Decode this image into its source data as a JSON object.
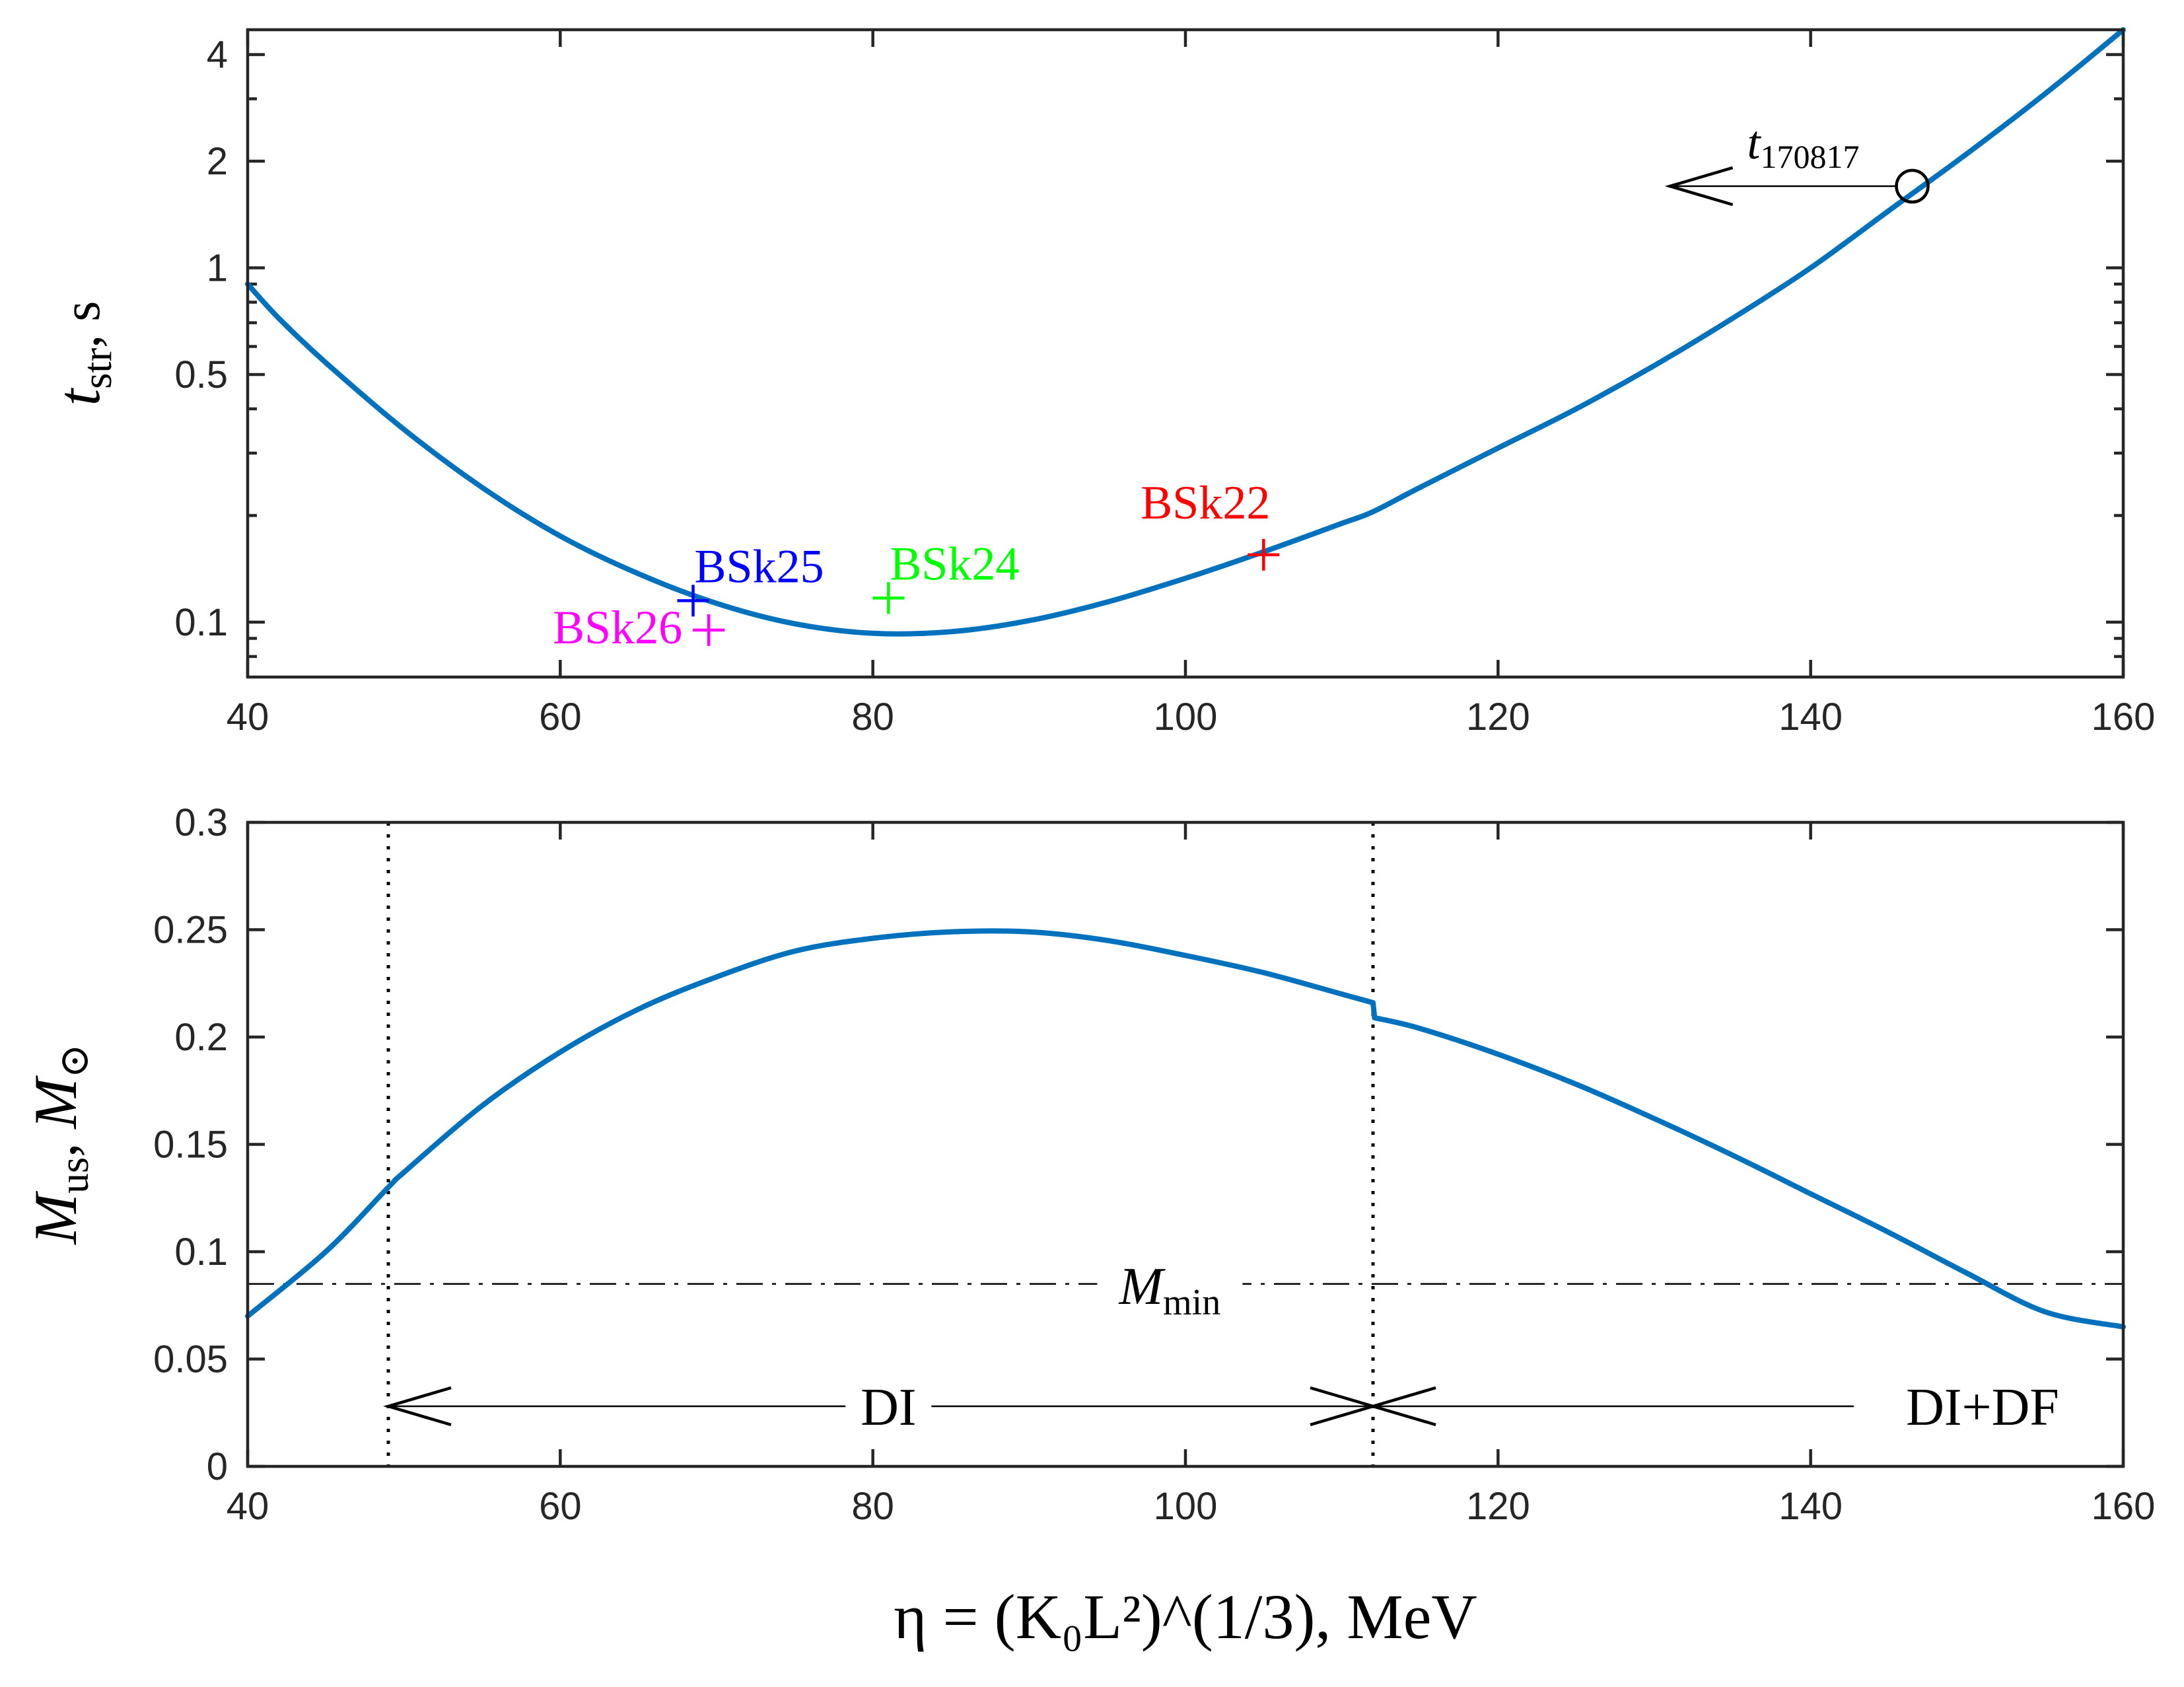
{
  "chart_data": [
    {
      "type": "line",
      "panel": "top",
      "x_scale": "linear",
      "y_scale": "log",
      "xlim": [
        40,
        160
      ],
      "ylim": [
        0.07,
        4.7
      ],
      "x_ticks": [
        40,
        60,
        80,
        100,
        120,
        140,
        160
      ],
      "y_ticks": [
        0.1,
        0.5,
        1,
        2,
        4
      ],
      "y_tick_labels": [
        "0.1",
        "0.5",
        "1",
        "2",
        "4"
      ],
      "ylabel_main": "t",
      "ylabel_sub": "str",
      "ylabel_unit": ", s",
      "series": [
        {
          "name": "t_str",
          "color": "#0072BD",
          "x": [
            40,
            42,
            45,
            50,
            55,
            60,
            65,
            70,
            75,
            80,
            85,
            90,
            95,
            100,
            105,
            110,
            112,
            115,
            120,
            125,
            130,
            135,
            140,
            145,
            150,
            155,
            160
          ],
          "y": [
            0.9,
            0.72,
            0.54,
            0.35,
            0.24,
            0.175,
            0.137,
            0.113,
            0.099,
            0.093,
            0.094,
            0.101,
            0.114,
            0.133,
            0.158,
            0.19,
            0.205,
            0.24,
            0.31,
            0.4,
            0.53,
            0.72,
            1.0,
            1.45,
            2.1,
            3.1,
            4.7
          ]
        }
      ],
      "markers": [
        {
          "label": "BSk25",
          "x": 68.5,
          "y": 0.115,
          "color": "#0000FF"
        },
        {
          "label": "BSk24",
          "x": 81.0,
          "y": 0.117,
          "color": "#00FF00"
        },
        {
          "label": "BSk22",
          "x": 105.0,
          "y": 0.155,
          "color": "#FF0000"
        },
        {
          "label": "BSk26",
          "x": 69.5,
          "y": 0.095,
          "color": "#FF00FF"
        }
      ],
      "annotation": {
        "main": "t",
        "sub": "170817",
        "circle_x": 146.5,
        "circle_y": 1.7,
        "arrow_to_x": 131
      }
    },
    {
      "type": "line",
      "panel": "bottom",
      "x_scale": "linear",
      "y_scale": "linear",
      "xlim": [
        40,
        160
      ],
      "ylim": [
        0,
        0.3
      ],
      "x_ticks": [
        40,
        60,
        80,
        100,
        120,
        140,
        160
      ],
      "y_ticks": [
        0,
        0.05,
        0.1,
        0.15,
        0.2,
        0.25,
        0.3
      ],
      "y_tick_labels": [
        "0",
        "0.05",
        "0.1",
        "0.15",
        "0.2",
        "0.25",
        "0.3"
      ],
      "ylabel_main": "M",
      "ylabel_sub": "us",
      "ylabel_unit_main": "M",
      "ylabel_unit_sub": "⊙",
      "xlabel_text": "η = (K₀L²)^(1/3), MeV",
      "series": [
        {
          "name": "M_us",
          "color": "#0072BD",
          "x": [
            40,
            45,
            49,
            50,
            55,
            60,
            65,
            70,
            75,
            80,
            85,
            90,
            95,
            100,
            105,
            110,
            112,
            112.1,
            115,
            120,
            125,
            130,
            135,
            140,
            145,
            150,
            155,
            160
          ],
          "y": [
            0.07,
            0.1,
            0.13,
            0.137,
            0.168,
            0.193,
            0.213,
            0.228,
            0.24,
            0.246,
            0.249,
            0.249,
            0.245,
            0.238,
            0.23,
            0.22,
            0.216,
            0.209,
            0.204,
            0.192,
            0.178,
            0.162,
            0.145,
            0.127,
            0.109,
            0.09,
            0.072,
            0.065
          ]
        }
      ],
      "m_min": {
        "y": 0.085,
        "label_main": "M",
        "label_sub": "min"
      },
      "vlines_x": [
        49,
        112
      ],
      "region_labels": [
        {
          "text": "DI",
          "x": 81,
          "y": 0.028
        },
        {
          "text": "DI+DF",
          "x": 151,
          "y": 0.028
        }
      ],
      "arrow_y": 0.028
    }
  ]
}
